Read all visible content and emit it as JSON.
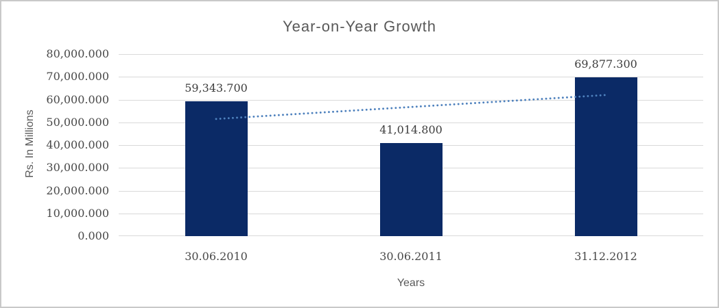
{
  "chart_data": {
    "type": "bar",
    "title": "Year-on-Year Growth",
    "xlabel": "Years",
    "ylabel": "Rs. In Millions",
    "categories": [
      "30.06.2010",
      "30.06.2011",
      "31.12.2012"
    ],
    "values": [
      59343.7,
      41014.8,
      69877.3
    ],
    "data_labels": [
      "59,343.700",
      "41,014.800",
      "69,877.300"
    ],
    "ylim": [
      0,
      80000
    ],
    "ytick_step": 10000,
    "ytick_labels": [
      "0.000",
      "10,000.000",
      "20,000.000",
      "30,000.000",
      "40,000.000",
      "50,000.000",
      "60,000.000",
      "70,000.000",
      "80,000.000"
    ],
    "grid": true,
    "legend": "none",
    "trendline": {
      "kind": "linear",
      "style": "dotted"
    },
    "colors": {
      "bar": "#0B2A66",
      "trendline": "#4E81BD",
      "gridline": "#D9D9D9",
      "title_text": "#595959",
      "tick_text": "#484848",
      "data_label_text": "#3D3D3D"
    }
  }
}
